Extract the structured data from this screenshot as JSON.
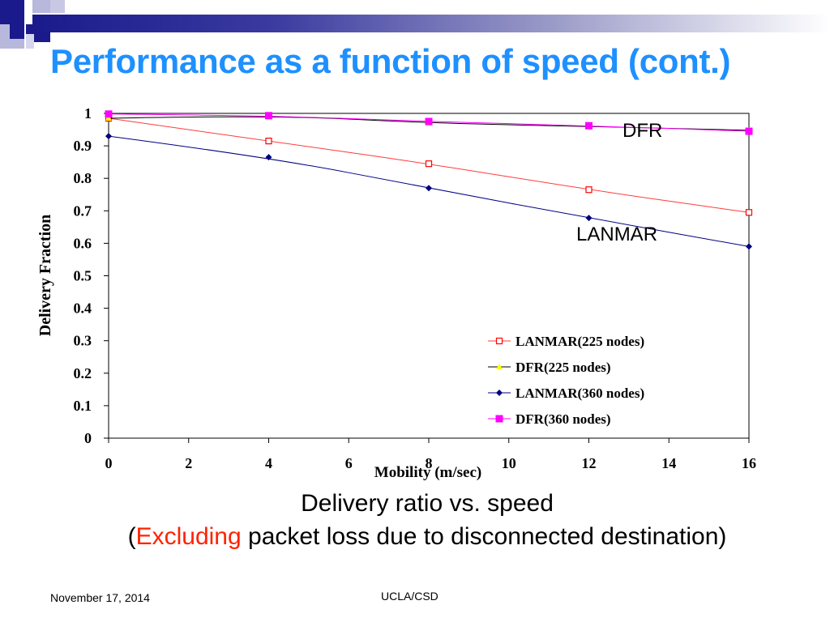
{
  "slide": {
    "title": "Performance as a function of speed (cont.)",
    "caption_line1": "Delivery ratio vs. speed",
    "caption_open": "(",
    "caption_highlight": "Excluding",
    "caption_rest": " packet loss due to disconnected destination)",
    "footer_date": "November 17, 2014",
    "footer_center": "UCLA/CSD"
  },
  "colors": {
    "title": "#1e90ff",
    "highlight": "#ff2200",
    "lanmar225": "#ff0000",
    "dfr225": "#ffff00",
    "lanmar360": "#000080",
    "dfr360": "#ff00ff"
  },
  "chart_data": {
    "type": "line",
    "xlabel": "Mobility (m/sec)",
    "ylabel": "Delivery Fraction",
    "xlim": [
      0,
      16
    ],
    "ylim": [
      0,
      1
    ],
    "xticks": [
      0,
      2,
      4,
      6,
      8,
      10,
      12,
      14,
      16
    ],
    "yticks": [
      0,
      0.1,
      0.2,
      0.3,
      0.4,
      0.5,
      0.6,
      0.7,
      0.8,
      0.9,
      1
    ],
    "ytick_labels": [
      "0",
      "0.1",
      "0.2",
      "0.3",
      "0.4",
      "0.5",
      "0.6",
      "0.7",
      "0.8",
      "0.9",
      "1"
    ],
    "x": [
      0,
      4,
      8,
      12,
      16
    ],
    "series": [
      {
        "name": "LANMAR(225 nodes)",
        "values": [
          0.985,
          0.915,
          0.845,
          0.765,
          0.695
        ],
        "color": "#ff0000",
        "line": "#ff3b3b",
        "marker": "square-open"
      },
      {
        "name": "DFR(225 nodes)",
        "values": [
          0.985,
          0.995,
          0.97,
          0.96,
          0.948
        ],
        "color": "#ffff00",
        "line": "#000000",
        "marker": "triangle"
      },
      {
        "name": "LANMAR(360 nodes)",
        "values": [
          0.93,
          0.865,
          0.77,
          0.678,
          0.59
        ],
        "color": "#000080",
        "line": "#000080",
        "marker": "diamond"
      },
      {
        "name": "DFR(360 nodes)",
        "values": [
          0.998,
          0.993,
          0.975,
          0.962,
          0.945
        ],
        "color": "#ff00ff",
        "line": "#ff00ff",
        "marker": "square"
      }
    ],
    "legend": "bottom-right",
    "annotations": [
      "DFR",
      "LANMAR"
    ],
    "grid": false
  }
}
